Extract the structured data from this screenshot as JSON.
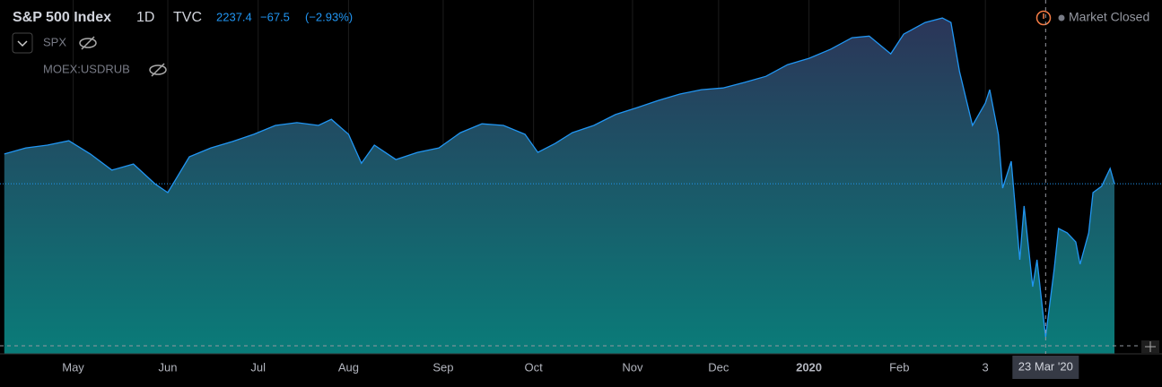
{
  "header": {
    "title": "S&P 500 Index",
    "interval": "1D",
    "source": "TVC",
    "last": "2237.4",
    "change": "−67.5",
    "change_pct": "(−2.93%)",
    "status": "Market Closed",
    "legend": [
      "SPX",
      "MOEX:USDRUB"
    ]
  },
  "chart_data": {
    "type": "area",
    "color": "#2196f3",
    "x": [
      0,
      5,
      10,
      15,
      20,
      25,
      30,
      35,
      38,
      43,
      48,
      53,
      58,
      63,
      68,
      73,
      76,
      80,
      83,
      86,
      91,
      96,
      101,
      106,
      111,
      116,
      121,
      124,
      128,
      132,
      137,
      142,
      147,
      152,
      157,
      162,
      167,
      172,
      177,
      182,
      187,
      192,
      197,
      201,
      206,
      209,
      214,
      218,
      220,
      222,
      225,
      228,
      229,
      231,
      232,
      234,
      236,
      237,
      239,
      240,
      242,
      244,
      245,
      247,
      249,
      250,
      252,
      253,
      255,
      257,
      258
    ],
    "values": [
      2896,
      2918,
      2928,
      2944,
      2896,
      2838,
      2860,
      2789,
      2757,
      2886,
      2918,
      2941,
      2967,
      2999,
      3009,
      2999,
      3021,
      2967,
      2863,
      2928,
      2876,
      2902,
      2918,
      2973,
      3005,
      2999,
      2967,
      2902,
      2934,
      2973,
      2999,
      3038,
      3063,
      3089,
      3112,
      3128,
      3134,
      3154,
      3176,
      3218,
      3241,
      3273,
      3315,
      3321,
      3257,
      3328,
      3370,
      3386,
      3370,
      3192,
      2999,
      3080,
      3128,
      2967,
      2773,
      2870,
      2515,
      2709,
      2418,
      2515,
      2237.4,
      2483,
      2628,
      2612,
      2579,
      2499,
      2612,
      2757,
      2780,
      2844,
      2789
    ],
    "xlim": [
      -1,
      268
    ],
    "ylim": [
      2176,
      3451
    ],
    "xticks": [
      {
        "value": 16,
        "label": "May"
      },
      {
        "value": 38,
        "label": "Jun"
      },
      {
        "value": 59,
        "label": "Jul"
      },
      {
        "value": 80,
        "label": "Aug"
      },
      {
        "value": 102,
        "label": "Sep"
      },
      {
        "value": 123,
        "label": "Oct"
      },
      {
        "value": 146,
        "label": "Nov"
      },
      {
        "value": 166,
        "label": "Dec"
      },
      {
        "value": 187,
        "label": "2020"
      },
      {
        "value": 208,
        "label": "Feb"
      },
      {
        "value": 228,
        "label": "3"
      }
    ],
    "crosshair": {
      "index": 60,
      "label": "23 Mar '20"
    },
    "grid": true
  }
}
